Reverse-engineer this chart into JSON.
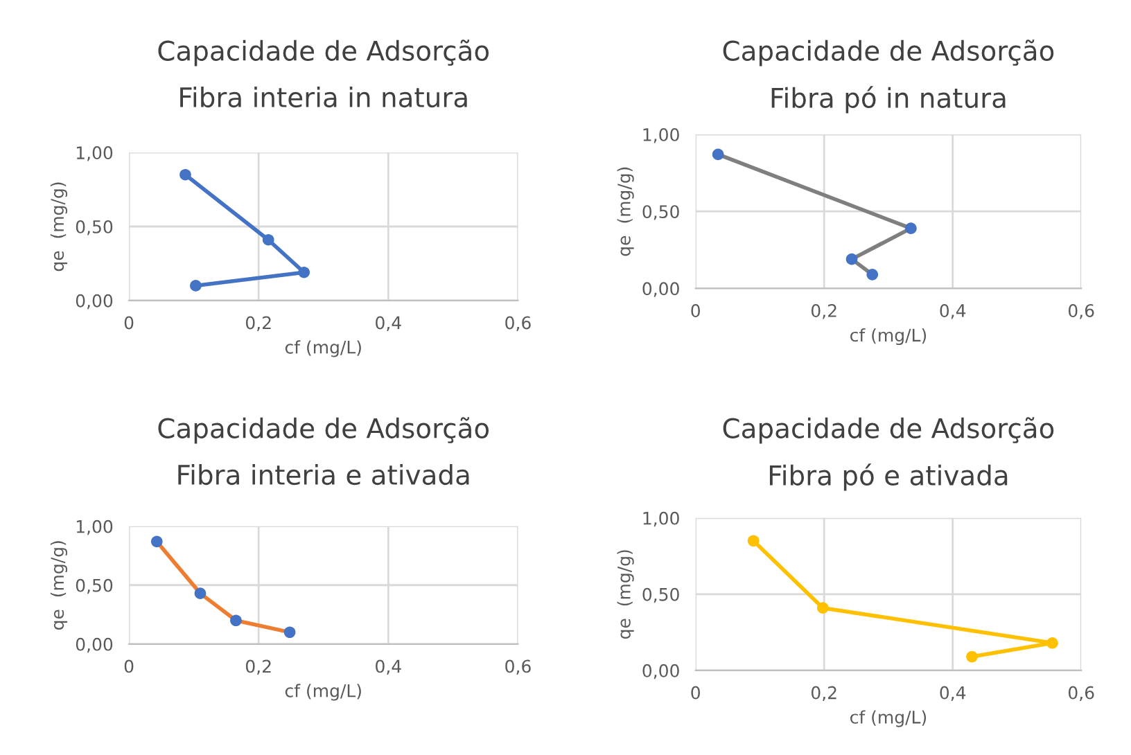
{
  "chart_data": [
    {
      "type": "line",
      "title": "Capacidade de Adsorção",
      "subtitle": "Fibra interia in natura",
      "xlabel": "cf (mg/L)",
      "ylabel": "qe  (mg/g)",
      "series": [
        {
          "color": "#4472c4",
          "colors": [
            "#4472c4",
            "#4472c4",
            "#4472c4",
            "#4472c4"
          ],
          "x": [
            0.087,
            0.215,
            0.27,
            0.103
          ],
          "values": [
            0.85,
            0.41,
            0.19,
            0.1
          ]
        }
      ],
      "xlim": [
        0,
        0.6
      ],
      "xticks": [
        0,
        {
          "value": 0.2,
          "label": "0,2"
        },
        {
          "value": 0.4,
          "label": "0,4"
        },
        {
          "value": 0.6,
          "label": "0,6"
        }
      ],
      "ylim": [
        0,
        1
      ],
      "yticks": [
        {
          "value": 0,
          "label": "0,00"
        },
        {
          "value": 0.5,
          "label": "0,50"
        },
        {
          "value": 1,
          "label": "1,00"
        }
      ],
      "grid": true,
      "marker": "circle",
      "line_style": "solid"
    },
    {
      "type": "line",
      "title": "Capacidade de Adsorção",
      "subtitle": "Fibra pó in natura",
      "xlabel": "cf (mg/L)",
      "ylabel": "qe  (mg/g)",
      "series": [
        {
          "color": "#7f7f7f",
          "colors": [
            "#4472c4",
            "#4472c4",
            "#4472c4",
            "#4472c4"
          ],
          "x": [
            0.035,
            0.335,
            0.243,
            0.275
          ],
          "values": [
            0.87,
            0.39,
            0.19,
            0.09
          ]
        }
      ],
      "xlim": [
        0,
        0.6
      ],
      "xticks": [
        0,
        {
          "value": 0.2,
          "label": "0,2"
        },
        {
          "value": 0.4,
          "label": "0,4"
        },
        {
          "value": 0.6,
          "label": "0,6"
        }
      ],
      "ylim": [
        0,
        1
      ],
      "yticks": [
        {
          "value": 0,
          "label": "0,00"
        },
        {
          "value": 0.5,
          "label": "0,50"
        },
        {
          "value": 1,
          "label": "1,00"
        }
      ],
      "grid": true,
      "marker": "circle",
      "line_style": "solid"
    },
    {
      "type": "line",
      "title": "Capacidade de Adsorção",
      "subtitle": "Fibra interia e ativada",
      "xlabel": "cf (mg/L)",
      "ylabel": "qe  (mg/g)",
      "series": [
        {
          "color": "#ed7d31",
          "colors": [
            "#4472c4",
            "#4472c4",
            "#4472c4",
            "#4472c4"
          ],
          "x": [
            0.043,
            0.11,
            0.165,
            0.248
          ],
          "values": [
            0.87,
            0.43,
            0.2,
            0.1
          ]
        }
      ],
      "xlim": [
        0,
        0.6
      ],
      "xticks": [
        0,
        {
          "value": 0.2,
          "label": "0,2"
        },
        {
          "value": 0.4,
          "label": "0,4"
        },
        {
          "value": 0.6,
          "label": "0,6"
        }
      ],
      "ylim": [
        0,
        1
      ],
      "yticks": [
        {
          "value": 0,
          "label": "0,00"
        },
        {
          "value": 0.5,
          "label": "0,50"
        },
        {
          "value": 1,
          "label": "1,00"
        }
      ],
      "grid": true,
      "marker": "circle",
      "line_style": "solid"
    },
    {
      "type": "line",
      "title": "Capacidade de Adsorção",
      "subtitle": "Fibra pó e ativada",
      "xlabel": "cf (mg/L)",
      "ylabel": "qe  (mg/g)",
      "series": [
        {
          "color": "#ffc000",
          "colors": [
            "#ffc000",
            "#ffc000",
            "#ffc000",
            "#ffc000"
          ],
          "x": [
            0.09,
            0.198,
            0.555,
            0.43
          ],
          "values": [
            0.85,
            0.41,
            0.18,
            0.09
          ]
        }
      ],
      "xlim": [
        0,
        0.6
      ],
      "xticks": [
        0,
        {
          "value": 0.2,
          "label": "0,2"
        },
        {
          "value": 0.4,
          "label": "0,4"
        },
        {
          "value": 0.6,
          "label": "0,6"
        }
      ],
      "ylim": [
        0,
        1
      ],
      "yticks": [
        {
          "value": 0,
          "label": "0,00"
        },
        {
          "value": 0.5,
          "label": "0,50"
        },
        {
          "value": 1,
          "label": "1,00"
        }
      ],
      "grid": true,
      "marker": "circle",
      "line_style": "solid"
    }
  ]
}
